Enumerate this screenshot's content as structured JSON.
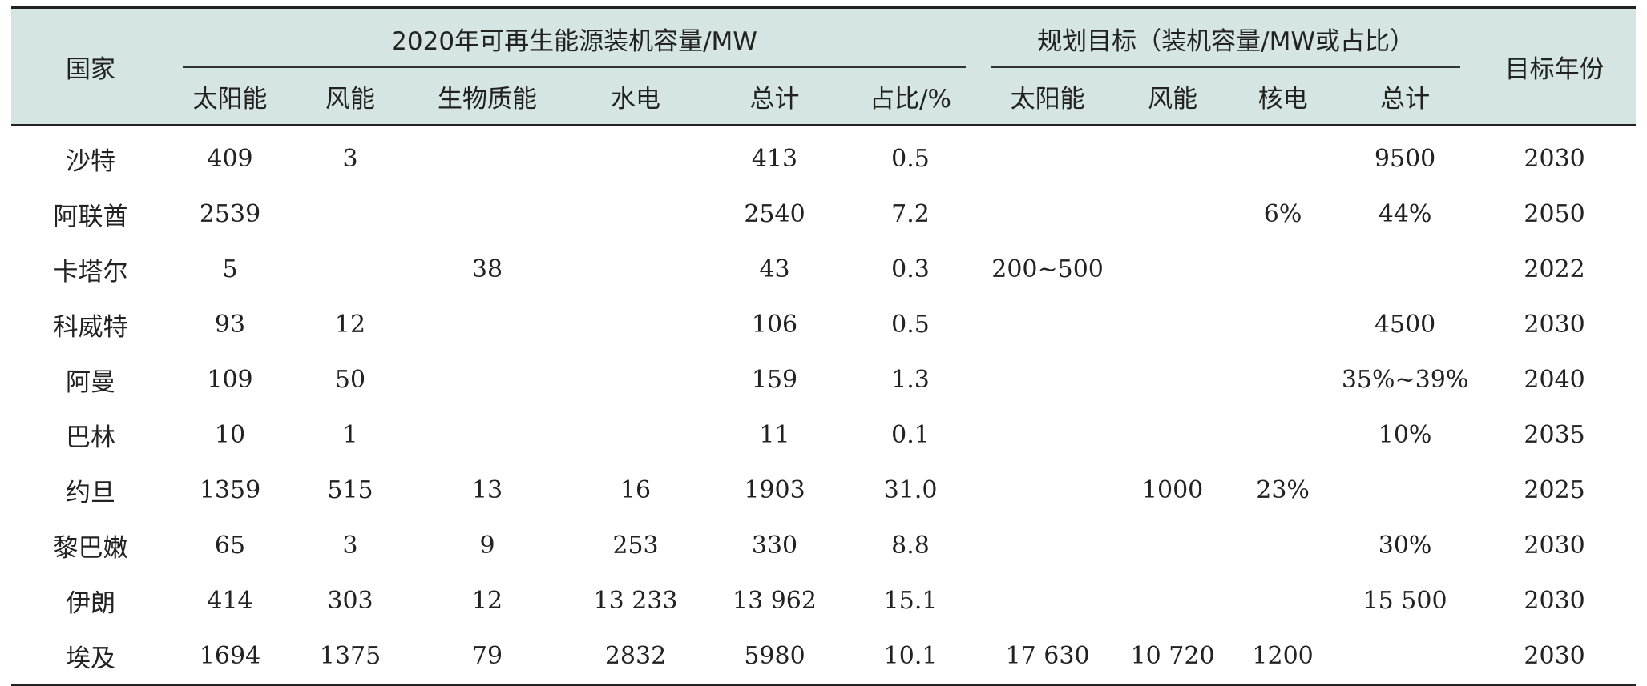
{
  "headers": {
    "country": "国家",
    "group_2020": "2020年可再生能源装机容量/MW",
    "group_target": "规划目标（装机容量/MW或占比）",
    "target_year": "目标年份",
    "sub": [
      "太阳能",
      "风能",
      "生物质能",
      "水电",
      "总计",
      "占比/%",
      "太阳能",
      "风能",
      "核电",
      "总计"
    ]
  },
  "rows": [
    [
      "沙特",
      "409",
      "3",
      "",
      "",
      "413",
      "0.5",
      "",
      "",
      "",
      "9500",
      "2030"
    ],
    [
      "阿联酋",
      "2539",
      "",
      "",
      "",
      "2540",
      "7.2",
      "",
      "",
      "6%",
      "44%",
      "2050"
    ],
    [
      "卡塔尔",
      "5",
      "",
      "38",
      "",
      "43",
      "0.3",
      "200~500",
      "",
      "",
      "",
      "2022"
    ],
    [
      "科威特",
      "93",
      "12",
      "",
      "",
      "106",
      "0.5",
      "",
      "",
      "",
      "4500",
      "2030"
    ],
    [
      "阿曼",
      "109",
      "50",
      "",
      "",
      "159",
      "1.3",
      "",
      "",
      "",
      "35%~39%",
      "2040"
    ],
    [
      "巴林",
      "10",
      "1",
      "",
      "",
      "11",
      "0.1",
      "",
      "",
      "",
      "10%",
      "2035"
    ],
    [
      "约旦",
      "1359",
      "515",
      "13",
      "16",
      "1903",
      "31.0",
      "",
      "1000",
      "23%",
      "",
      "2025"
    ],
    [
      "黎巴嫩",
      "65",
      "3",
      "9",
      "253",
      "330",
      "8.8",
      "",
      "",
      "",
      "30%",
      "2030"
    ],
    [
      "伊朗",
      "414",
      "303",
      "12",
      "13 233",
      "13 962",
      "15.1",
      "",
      "",
      "",
      "15 500",
      "2030"
    ],
    [
      "埃及",
      "1694",
      "1375",
      "79",
      "2832",
      "5980",
      "10.1",
      "17 630",
      "10 720",
      "1200",
      "",
      "2030"
    ]
  ]
}
